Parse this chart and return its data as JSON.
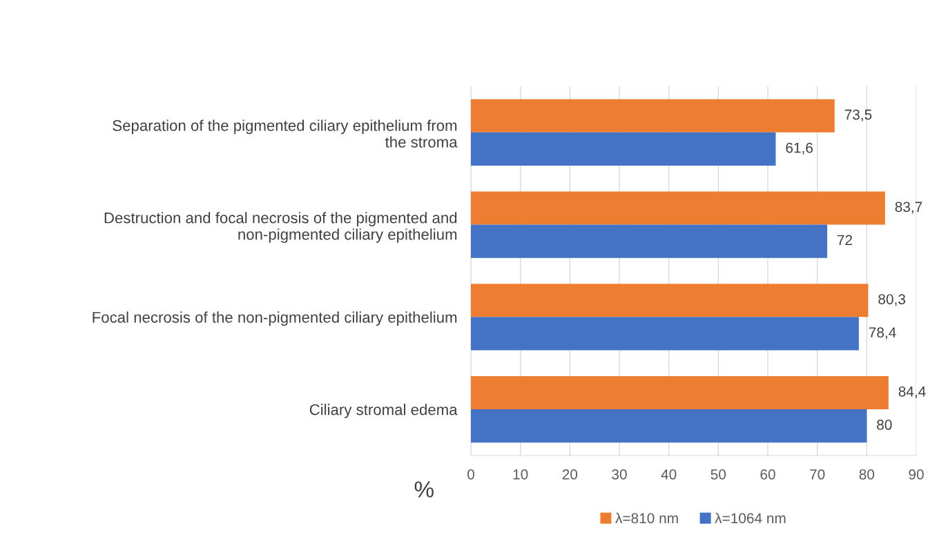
{
  "chart_data": {
    "type": "bar",
    "orientation": "horizontal",
    "categories": [
      "Separation of the pigmented ciliary epithelium from\nthe stroma",
      "Destruction and focal necrosis of the pigmented and\nnon-pigmented ciliary epithelium",
      "Focal necrosis of the non-pigmented ciliary epithelium",
      "Ciliary stromal edema"
    ],
    "series": [
      {
        "name": "λ=810 nm",
        "color": "#ed7d31",
        "values": [
          73.5,
          83.7,
          80.3,
          84.4
        ],
        "value_labels": [
          "73,5",
          "83,7",
          "80,3",
          "84,4"
        ]
      },
      {
        "name": "λ=1064 nm",
        "color": "#4472c4",
        "values": [
          61.6,
          72,
          78.4,
          80
        ],
        "value_labels": [
          "61,6",
          "72",
          "78,4",
          "80"
        ]
      }
    ],
    "xlabel": "%",
    "xlim": [
      0,
      90
    ],
    "xticks": [
      0,
      10,
      20,
      30,
      40,
      50,
      60,
      70,
      80,
      90
    ],
    "grid": "x",
    "legend": "bottom"
  }
}
